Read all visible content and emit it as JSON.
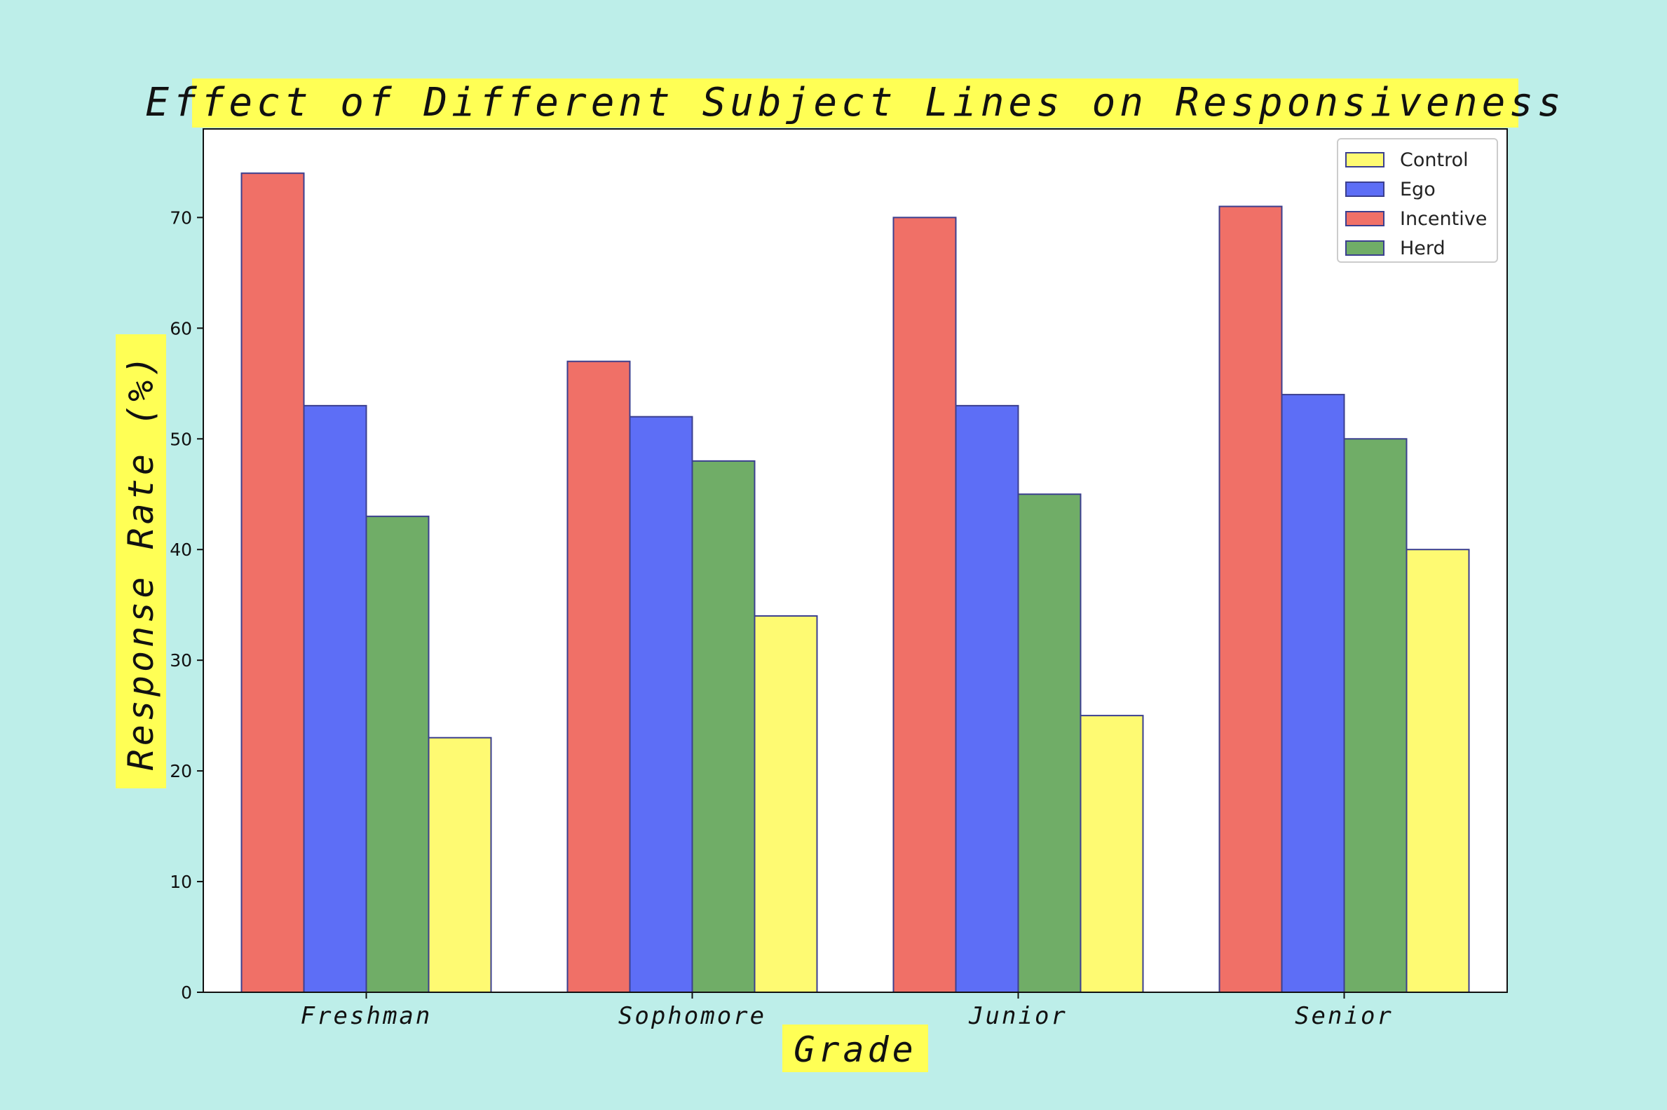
{
  "chart_data": {
    "type": "bar",
    "title": "Effect of Different Subject Lines on Responsiveness",
    "xlabel": "Grade",
    "ylabel": "Response Rate (%)",
    "categories": [
      "Freshman",
      "Sophomore",
      "Junior",
      "Senior"
    ],
    "series": [
      {
        "name": "Incentive",
        "values": [
          74,
          57,
          70,
          71
        ],
        "color": "#f07067"
      },
      {
        "name": "Ego",
        "values": [
          53,
          52,
          53,
          54
        ],
        "color": "#5d6ef6"
      },
      {
        "name": "Herd",
        "values": [
          43,
          48,
          45,
          50
        ],
        "color": "#70ad67"
      },
      {
        "name": "Control",
        "values": [
          23,
          34,
          25,
          40
        ],
        "color": "#fefa72"
      }
    ],
    "legend_order": [
      "Control",
      "Ego",
      "Incentive",
      "Herd"
    ],
    "yticks": [
      0,
      10,
      20,
      30,
      40,
      50,
      60,
      70
    ],
    "ylim": [
      0,
      78
    ],
    "legend_position": "top-right",
    "grid": false,
    "bar_edge_color": "#3b3f8f",
    "label_highlight_color": "#ffff55",
    "background_color": "#bdeee9",
    "plot_background_color": "#ffffff"
  }
}
